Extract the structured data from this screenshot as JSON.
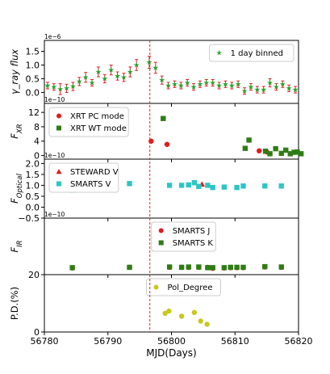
{
  "chart_data": {
    "type": "scatter",
    "xlabel": "MJD(Days)",
    "xlim": [
      56780,
      56820
    ],
    "xticks": [
      56780,
      56790,
      56800,
      56810,
      56820
    ],
    "flare_line_x": 56796.6,
    "panels": [
      {
        "id": "gamma",
        "ylabel_main": "γ_ray flux",
        "ylabel_sub": "",
        "multiplier": "1e−6",
        "ylim": [
          -0.4,
          1.9
        ],
        "yticks": [
          "0.0",
          "0.5",
          "1.0",
          "1.5"
        ],
        "ytick_values": [
          0,
          0.5,
          1.0,
          1.5
        ],
        "legend_pos": "top-right",
        "series": [
          {
            "name": "1 day binned",
            "marker": "star",
            "color": "#2ca02c",
            "errcolor": "#d62728",
            "x": [
              56780.5,
              56781.5,
              56782.5,
              56783.5,
              56784.5,
              56785.5,
              56786.5,
              56787.5,
              56788.5,
              56789.5,
              56790.5,
              56791.5,
              56792.5,
              56793.5,
              56794.5,
              56796.5,
              56797.5,
              56798.5,
              56799.5,
              56800.5,
              56801.5,
              56802.5,
              56803.5,
              56804.5,
              56805.5,
              56806.5,
              56807.5,
              56808.5,
              56809.5,
              56810.5,
              56811.5,
              56812.5,
              56813.5,
              56814.5,
              56815.5,
              56816.5,
              56817.5,
              56818.5,
              56819.5
            ],
            "y": [
              0.25,
              0.2,
              0.12,
              0.15,
              0.22,
              0.4,
              0.55,
              0.35,
              0.75,
              0.5,
              0.82,
              0.6,
              0.55,
              0.75,
              1.0,
              1.1,
              0.9,
              0.45,
              0.25,
              0.3,
              0.25,
              0.35,
              0.2,
              0.3,
              0.35,
              0.35,
              0.25,
              0.3,
              0.25,
              0.3,
              0.05,
              0.2,
              0.1,
              0.1,
              0.35,
              0.2,
              0.3,
              0.15,
              0.1
            ],
            "err": [
              0.12,
              0.12,
              0.2,
              0.15,
              0.15,
              0.15,
              0.18,
              0.12,
              0.18,
              0.15,
              0.18,
              0.15,
              0.15,
              0.18,
              0.2,
              0.22,
              0.2,
              0.15,
              0.12,
              0.12,
              0.12,
              0.12,
              0.12,
              0.12,
              0.12,
              0.12,
              0.12,
              0.12,
              0.12,
              0.12,
              0.12,
              0.12,
              0.12,
              0.12,
              0.15,
              0.12,
              0.12,
              0.12,
              0.12
            ]
          }
        ]
      },
      {
        "id": "xr",
        "ylabel_main": "F",
        "ylabel_sub": "XR",
        "multiplier": "1e−10",
        "ylim": [
          -1,
          14.5
        ],
        "yticks": [
          "0",
          "4",
          "8",
          "12"
        ],
        "ytick_values": [
          0,
          4,
          8,
          12
        ],
        "legend_pos": "top-left",
        "series": [
          {
            "name": "XRT PC mode",
            "marker": "circle",
            "color": "#e41a1c",
            "x": [
              56796.8,
              56799.3,
              56813.8,
              56815.0
            ],
            "y": [
              4.0,
              3.1,
              1.3,
              1.0
            ]
          },
          {
            "name": "XRT WT mode",
            "marker": "square",
            "color": "#2e7d14",
            "x": [
              56798.7,
              56811.6,
              56812.2,
              56814.8,
              56815.5,
              56816.4,
              56817.3,
              56818.0,
              56818.7,
              56819.3,
              56819.8,
              56820.4
            ],
            "y": [
              10.3,
              2.0,
              4.3,
              1.2,
              0.5,
              1.9,
              0.6,
              1.5,
              0.5,
              0.9,
              1.0,
              0.5
            ]
          }
        ]
      },
      {
        "id": "optical",
        "ylabel_main": "F",
        "ylabel_sub": "Optical",
        "multiplier": "1e−10",
        "ylim": [
          -0.5,
          2.2
        ],
        "yticks": [
          "−0.5",
          "0.0",
          "0.5",
          "1.0",
          "1.5",
          "2.0"
        ],
        "ytick_values": [
          -0.5,
          0,
          0.5,
          1.0,
          1.5,
          2.0
        ],
        "legend_pos": "top-left",
        "series": [
          {
            "name": "STEWARD V",
            "marker": "triangle",
            "color": "#e41a1c",
            "x": [
              56804.8
            ],
            "y": [
              1.05
            ]
          },
          {
            "name": "SMARTS V",
            "marker": "square",
            "color": "#2ec4c4",
            "x": [
              56784.4,
              56793.4,
              56799.7,
              56801.6,
              56802.7,
              56803.6,
              56804.3,
              56805.7,
              56806.5,
              56808.3,
              56810.3,
              56811.3,
              56814.7,
              56817.3
            ],
            "y": [
              0.78,
              1.08,
              1.0,
              1.0,
              1.02,
              1.12,
              0.95,
              1.0,
              0.9,
              0.92,
              0.9,
              0.97,
              0.97,
              0.97
            ]
          }
        ]
      },
      {
        "id": "ir",
        "ylabel_main": "F",
        "ylabel_sub": "IR",
        "multiplier": "1e−10",
        "ylim": [
          -0.15,
          1.55
        ],
        "yticks": [],
        "ytick_values": [],
        "legend_pos": "top-center",
        "series": [
          {
            "name": "SMARTS J",
            "marker": "circle",
            "color": "#e41a1c",
            "x": [
              56784.4,
              56793.4,
              56799.7,
              56801.6,
              56802.7,
              56804.3,
              56805.7,
              56806.5,
              56808.3,
              56809.3,
              56810.3,
              56811.3,
              56814.7,
              56817.3
            ],
            "y": [
              0.05,
              0.07,
              0.07,
              0.07,
              0.07,
              0.07,
              0.07,
              0.04,
              0.05,
              0.06,
              0.06,
              0.06,
              0.08,
              0.07
            ]
          },
          {
            "name": "SMARTS K",
            "marker": "square",
            "color": "#2e7d14",
            "x": [
              56784.4,
              56793.4,
              56799.7,
              56801.6,
              56802.7,
              56804.3,
              56805.7,
              56806.5,
              56808.3,
              56809.3,
              56810.3,
              56811.3,
              56814.7,
              56817.3
            ],
            "y": [
              0.06,
              0.07,
              0.08,
              0.07,
              0.08,
              0.08,
              0.06,
              0.06,
              0.06,
              0.07,
              0.07,
              0.07,
              0.09,
              0.08
            ]
          }
        ]
      },
      {
        "id": "pd",
        "ylabel_main": "P.D.(%)",
        "ylabel_sub": "",
        "multiplier": "",
        "ylim": [
          0,
          20
        ],
        "yticks": [
          "0",
          "20"
        ],
        "ytick_values": [
          0,
          20
        ],
        "legend_pos": "top-center",
        "series": [
          {
            "name": "Pol_Degree",
            "marker": "circle",
            "color": "#c8c81e",
            "x": [
              56799.0,
              56799.6,
              56801.6,
              56803.6,
              56804.6,
              56805.6
            ],
            "y": [
              6.5,
              7.3,
              5.5,
              6.8,
              3.8,
              2.7
            ]
          }
        ]
      }
    ]
  }
}
